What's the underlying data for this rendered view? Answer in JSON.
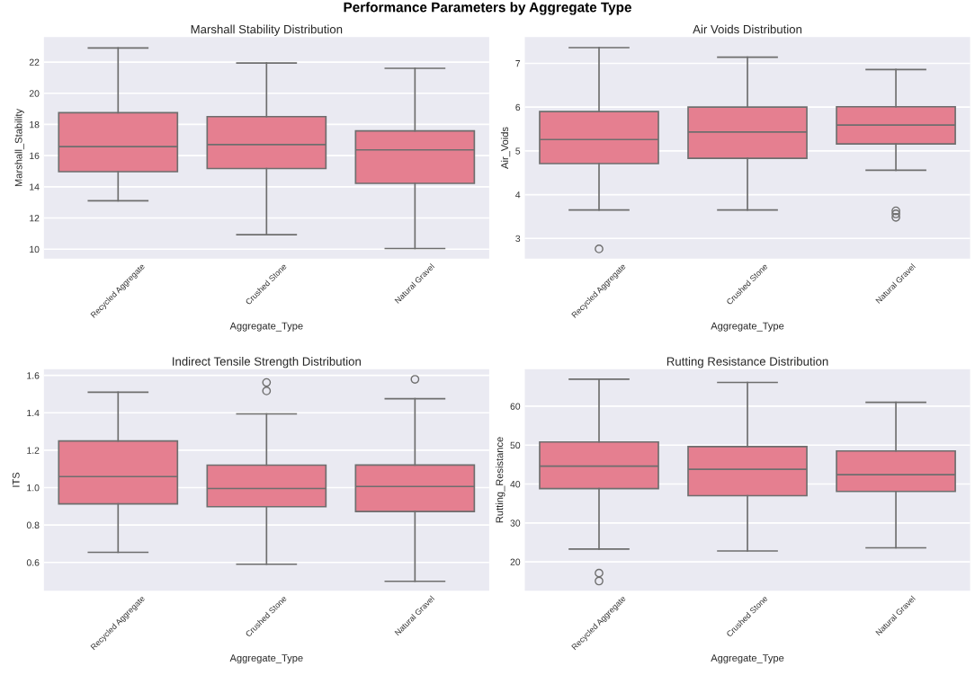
{
  "chart_data": [
    {
      "type": "box",
      "annotations": [
        "Performance Parameters by Aggregate Type"
      ],
      "title": "Marshall Stability Distribution",
      "xlabel": "Aggregate_Type",
      "ylabel": "Marshall_Stability",
      "categories": [
        "Recycled Aggregate",
        "Crushed Stone",
        "Natural Gravel"
      ],
      "color": "#e57f90",
      "ylim": [
        9.4,
        23.6
      ],
      "yticks": [
        10,
        12,
        14,
        16,
        18,
        20,
        22
      ],
      "grid": "y",
      "boxes": [
        {
          "low": 13.1,
          "q1": 14.97,
          "median": 16.58,
          "q3": 18.75,
          "high": 22.9
        },
        {
          "low": 10.93,
          "q1": 15.17,
          "median": 16.71,
          "q3": 18.5,
          "high": 21.94
        },
        {
          "low": 10.04,
          "q1": 14.22,
          "median": 16.37,
          "q3": 17.59,
          "high": 21.6
        }
      ]
    },
    {
      "type": "box",
      "title": "Air Voids Distribution",
      "xlabel": "Aggregate_Type",
      "ylabel": "Air_Voids",
      "categories": [
        "Recycled Aggregate",
        "Crushed Stone",
        "Natural Gravel"
      ],
      "color": "#e57f90",
      "ylim": [
        2.54,
        7.6
      ],
      "yticks": [
        3,
        4,
        5,
        6,
        7
      ],
      "grid": "y",
      "boxes": [
        {
          "low": 3.65,
          "q1": 4.71,
          "median": 5.26,
          "q3": 5.9,
          "high": 7.36,
          "outliers": [
            2.76
          ]
        },
        {
          "low": 3.65,
          "q1": 4.83,
          "median": 5.43,
          "q3": 6.0,
          "high": 7.14
        },
        {
          "low": 4.56,
          "q1": 5.16,
          "median": 5.59,
          "q3": 6.01,
          "high": 6.86,
          "outliers": [
            3.63,
            3.56,
            3.48
          ]
        }
      ]
    },
    {
      "type": "box",
      "title": "Indirect Tensile Strength Distribution",
      "xlabel": "Aggregate_Type",
      "ylabel": "ITS",
      "categories": [
        "Recycled Aggregate",
        "Crushed Stone",
        "Natural Gravel"
      ],
      "color": "#e57f90",
      "ylim": [
        0.449,
        1.633
      ],
      "yticks": [
        {
          "value": 0.6,
          "label": "0.6"
        },
        {
          "value": 0.8,
          "label": "0.8"
        },
        {
          "value": 1.0,
          "label": "1.0"
        },
        {
          "value": 1.2,
          "label": "1.2"
        },
        {
          "value": 1.4,
          "label": "1.4"
        },
        {
          "value": 1.6,
          "label": "1.6"
        }
      ],
      "grid": "y",
      "boxes": [
        {
          "low": 0.654,
          "q1": 0.913,
          "median": 1.059,
          "q3": 1.249,
          "high": 1.51
        },
        {
          "low": 0.59,
          "q1": 0.898,
          "median": 0.995,
          "q3": 1.12,
          "high": 1.394,
          "outliers": [
            1.562,
            1.517
          ]
        },
        {
          "low": 0.499,
          "q1": 0.872,
          "median": 1.006,
          "q3": 1.121,
          "high": 1.475,
          "outliers": [
            1.579
          ]
        }
      ]
    },
    {
      "type": "box",
      "title": "Rutting Resistance Distribution",
      "xlabel": "Aggregate_Type",
      "ylabel": "Rutting_Resistance",
      "categories": [
        "Recycled Aggregate",
        "Crushed Stone",
        "Natural Gravel"
      ],
      "color": "#e57f90",
      "ylim": [
        12.6,
        69.5
      ],
      "yticks": [
        20,
        30,
        40,
        50,
        60
      ],
      "grid": "y",
      "boxes": [
        {
          "low": 23.3,
          "q1": 38.8,
          "median": 44.6,
          "q3": 50.8,
          "high": 66.95,
          "outliers": [
            17.1,
            15.06
          ]
        },
        {
          "low": 22.8,
          "q1": 37.0,
          "median": 43.8,
          "q3": 49.6,
          "high": 66.1
        },
        {
          "low": 23.6,
          "q1": 38.1,
          "median": 42.4,
          "q3": 48.5,
          "high": 61.0
        }
      ]
    }
  ]
}
